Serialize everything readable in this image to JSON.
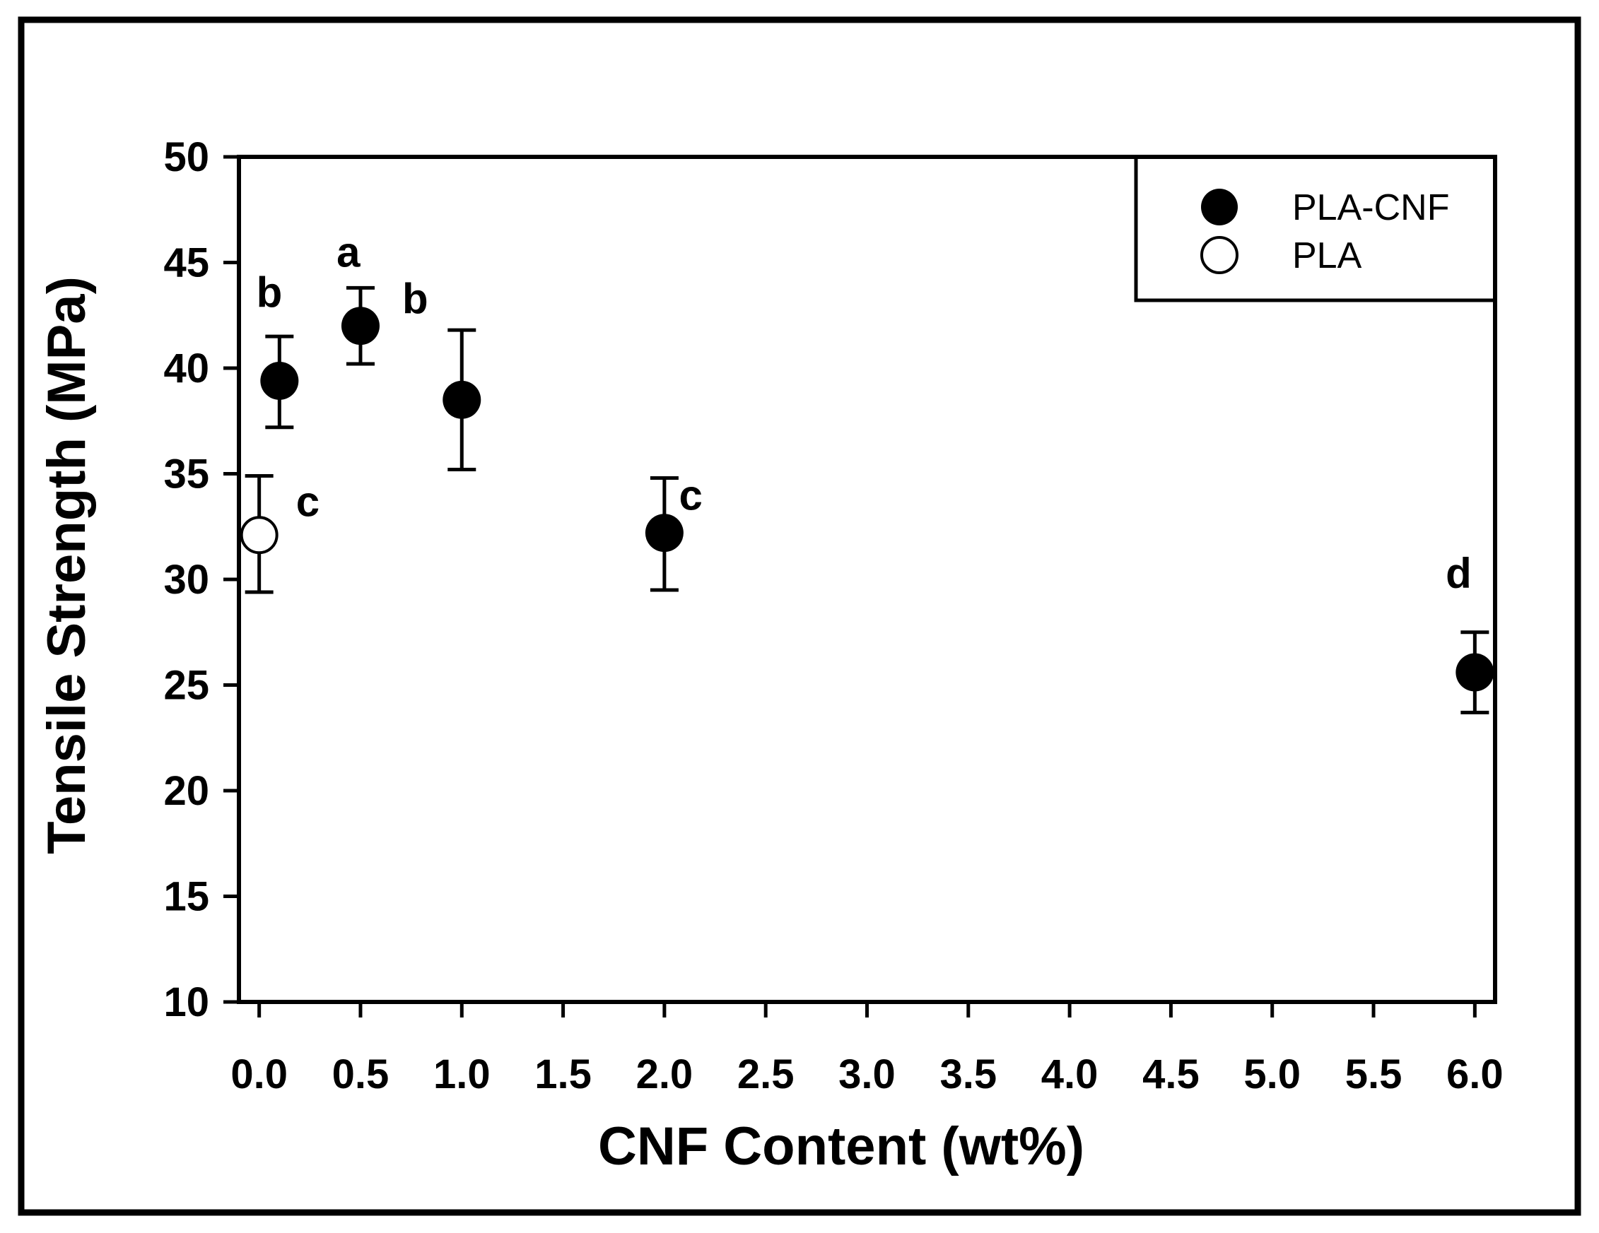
{
  "figure": {
    "background": "#FFFFFF",
    "border_color": "#000000",
    "marker_color": "#000000"
  },
  "chart_data": {
    "type": "scatter",
    "title": "",
    "xlabel": "CNF Content (wt%)",
    "ylabel": "Tensile Strength (MPa)",
    "xlim": [
      -0.1,
      6.1
    ],
    "ylim": [
      10,
      50
    ],
    "grid": false,
    "x_ticks": [
      {
        "value": 0.0,
        "label": "0.0"
      },
      {
        "value": 0.5,
        "label": "0.5"
      },
      {
        "value": 1.0,
        "label": "1.0"
      },
      {
        "value": 1.5,
        "label": "1.5"
      },
      {
        "value": 2.0,
        "label": "2.0"
      },
      {
        "value": 2.5,
        "label": "2.5"
      },
      {
        "value": 3.0,
        "label": "3.0"
      },
      {
        "value": 3.5,
        "label": "3.5"
      },
      {
        "value": 4.0,
        "label": "4.0"
      },
      {
        "value": 4.5,
        "label": "4.5"
      },
      {
        "value": 5.0,
        "label": "5.0"
      },
      {
        "value": 5.5,
        "label": "5.5"
      },
      {
        "value": 6.0,
        "label": "6.0"
      }
    ],
    "y_ticks": [
      {
        "value": 10,
        "label": "10"
      },
      {
        "value": 15,
        "label": "15"
      },
      {
        "value": 20,
        "label": "20"
      },
      {
        "value": 25,
        "label": "25"
      },
      {
        "value": 30,
        "label": "30"
      },
      {
        "value": 35,
        "label": "35"
      },
      {
        "value": 40,
        "label": "40"
      },
      {
        "value": 45,
        "label": "45"
      },
      {
        "value": 50,
        "label": "50"
      }
    ],
    "legend": {
      "position": "top-right",
      "entries": [
        {
          "label": "PLA-CNF",
          "marker": "filled-circle"
        },
        {
          "label": "PLA",
          "marker": "open-circle"
        }
      ]
    },
    "series": [
      {
        "name": "PLA-CNF",
        "marker": "filled-circle",
        "color": "#000000",
        "points": [
          {
            "x": 0.1,
            "y": 39.4,
            "err_up": 2.1,
            "err_down": 2.2,
            "sig_letter": "b"
          },
          {
            "x": 0.5,
            "y": 42.0,
            "err_up": 1.8,
            "err_down": 1.8,
            "sig_letter": "a"
          },
          {
            "x": 1.0,
            "y": 38.5,
            "err_up": 3.3,
            "err_down": 3.3,
            "sig_letter": "b"
          },
          {
            "x": 2.0,
            "y": 32.2,
            "err_up": 2.6,
            "err_down": 2.7,
            "sig_letter": "c"
          },
          {
            "x": 6.0,
            "y": 25.6,
            "err_up": 1.9,
            "err_down": 1.9,
            "sig_letter": "d"
          }
        ]
      },
      {
        "name": "PLA",
        "marker": "open-circle",
        "color": "#000000",
        "points": [
          {
            "x": 0.0,
            "y": 32.1,
            "err_up": 2.8,
            "err_down": 2.7,
            "sig_letter": "c"
          }
        ]
      }
    ],
    "annotations": [
      {
        "text": "b",
        "x": 0.05,
        "y": 43.6
      },
      {
        "text": "a",
        "x": 0.44,
        "y": 45.5
      },
      {
        "text": "b",
        "x": 0.77,
        "y": 43.3
      },
      {
        "text": "c",
        "x": 0.24,
        "y": 33.7
      },
      {
        "text": "c",
        "x": 2.13,
        "y": 34.0
      },
      {
        "text": "d",
        "x": 5.92,
        "y": 30.3
      }
    ]
  }
}
